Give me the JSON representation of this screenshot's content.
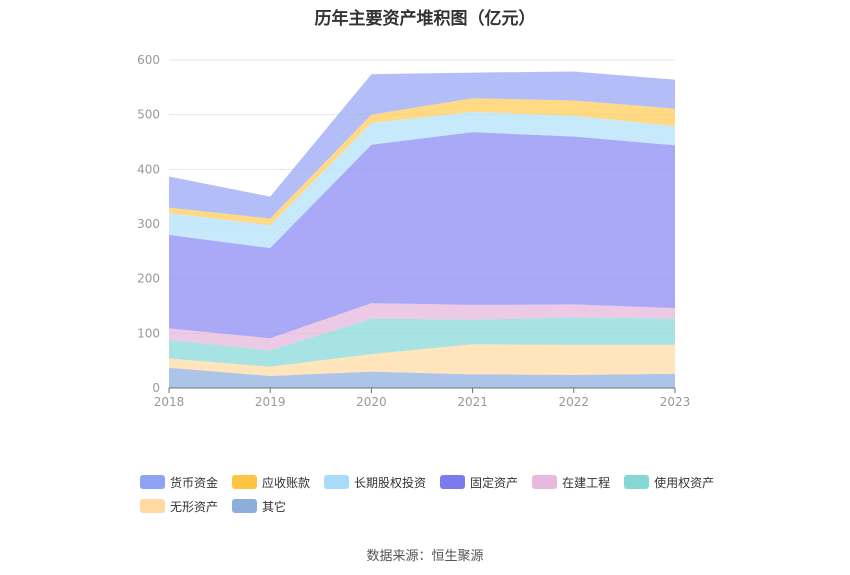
{
  "title": "历年主要资产堆积图（亿元）",
  "source": "数据来源：恒生聚源",
  "chart_data": {
    "type": "area",
    "stacked": true,
    "categories": [
      "2018",
      "2019",
      "2020",
      "2021",
      "2022",
      "2023"
    ],
    "ylim": [
      0,
      600
    ],
    "yticks": [
      0,
      100,
      200,
      300,
      400,
      500,
      600
    ],
    "grid": true,
    "legend_position": "bottom",
    "series": [
      {
        "name": "其它",
        "color": "#8fb0e0",
        "values": [
          37,
          22,
          30,
          25,
          24,
          26
        ]
      },
      {
        "name": "无形资产",
        "color": "#ffdba6",
        "values": [
          17,
          17,
          32,
          55,
          55,
          53
        ]
      },
      {
        "name": "使用权资产",
        "color": "#89d9d9",
        "values": [
          34,
          30,
          65,
          45,
          50,
          48
        ]
      },
      {
        "name": "在建工程",
        "color": "#e6b8dc",
        "values": [
          21,
          22,
          28,
          27,
          24,
          19
        ]
      },
      {
        "name": "固定资产",
        "color": "#8c8cf5",
        "values": [
          171,
          165,
          290,
          316,
          307,
          298
        ]
      },
      {
        "name": "长期股权投资",
        "color": "#b3e3fa",
        "values": [
          40,
          42,
          40,
          37,
          38,
          35
        ]
      },
      {
        "name": "应收账款",
        "color": "#ffcc59",
        "values": [
          10,
          12,
          15,
          25,
          28,
          32
        ]
      },
      {
        "name": "货币资金",
        "color": "#99a8f5",
        "values": [
          57,
          40,
          74,
          47,
          53,
          53
        ]
      }
    ]
  },
  "legend": [
    [
      {
        "name": "货币资金",
        "color": "#8da4f5"
      },
      {
        "name": "应收账款",
        "color": "#ffc542"
      },
      {
        "name": "长期股权投资",
        "color": "#a8dcfa"
      },
      {
        "name": "固定资产",
        "color": "#7b7bf0"
      },
      {
        "name": "在建工程",
        "color": "#e8b9dc"
      },
      {
        "name": "使用权资产",
        "color": "#87d7d7"
      }
    ],
    [
      {
        "name": "无形资产",
        "color": "#ffd9a3"
      },
      {
        "name": "其它",
        "color": "#8daedc"
      }
    ]
  ]
}
